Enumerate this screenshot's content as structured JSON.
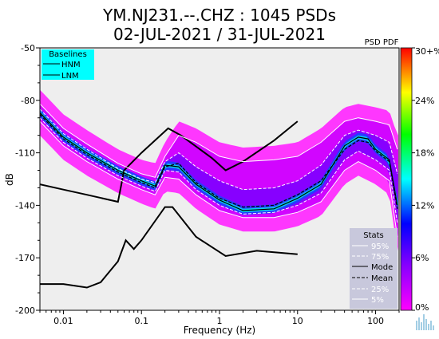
{
  "chart_data": {
    "type": "heatmap",
    "title_line1": "YM.NJ231.--.CHZ : 1045 PSDs",
    "title_line2": "02-JUL-2021 / 31-JUL-2021",
    "xlabel": "Frequency (Hz)",
    "ylabel": "dB",
    "x_scale": "log",
    "xlim": [
      0.005,
      200
    ],
    "ylim": [
      -200,
      -50
    ],
    "x_ticks": [
      0.01,
      0.1,
      1,
      10,
      100
    ],
    "x_tick_labels": [
      "0.01",
      "0.1",
      "1",
      "10",
      "100"
    ],
    "y_ticks": [
      -50,
      -80,
      -110,
      -140,
      -170,
      -200
    ],
    "y_tick_labels": [
      "-50",
      "-80",
      "-110",
      "-140",
      "-170",
      "-200"
    ],
    "colorbar": {
      "title": "PSD PDF",
      "ticks": [
        "0%",
        "6%",
        "12%",
        "18%",
        "24%",
        "30+%"
      ],
      "tick_values": [
        0,
        6,
        12,
        18,
        24,
        30
      ],
      "colors": [
        "#ff00ff",
        "#8800ff",
        "#0000ff",
        "#00ffff",
        "#00ff00",
        "#ffff00",
        "#ff0000"
      ]
    },
    "baselines_legend": {
      "title": "Baselines",
      "entries": [
        "HNM",
        "LNM"
      ],
      "background": "#00ffff"
    },
    "stats_legend": {
      "title": "Stats",
      "entries": [
        "95%",
        "75%",
        "Mode",
        "Mean",
        "25%",
        "5%"
      ],
      "background": "#c8c8dc"
    },
    "series": [
      {
        "name": "HNM",
        "x": [
          0.005,
          0.01,
          0.02,
          0.05,
          0.06,
          0.1,
          0.22,
          0.32,
          0.8,
          1.2,
          2,
          5,
          10
        ],
        "y": [
          -128,
          -131,
          -134,
          -138,
          -120,
          -110,
          -96,
          -100,
          -113,
          -120,
          -115,
          -103,
          -92
        ]
      },
      {
        "name": "LNM",
        "x": [
          0.005,
          0.01,
          0.02,
          0.03,
          0.05,
          0.063,
          0.08,
          0.1,
          0.2,
          0.25,
          0.5,
          1.2,
          3,
          10
        ],
        "y": [
          -185,
          -185,
          -187,
          -184,
          -172,
          -160,
          -165,
          -160,
          -141,
          -141,
          -158,
          -169,
          -166,
          -168
        ]
      },
      {
        "name": "Mode",
        "x": [
          0.005,
          0.01,
          0.02,
          0.05,
          0.1,
          0.15,
          0.2,
          0.3,
          0.5,
          1,
          2,
          5,
          10,
          20,
          40,
          60,
          80,
          100,
          150,
          190
        ],
        "y": [
          -87,
          -101,
          -110,
          -120,
          -126,
          -129,
          -117,
          -118,
          -128,
          -137,
          -143,
          -142,
          -136,
          -128,
          -106,
          -101,
          -102,
          -108,
          -114,
          -140
        ]
      },
      {
        "name": "Mean",
        "x": [
          0.005,
          0.01,
          0.02,
          0.05,
          0.1,
          0.15,
          0.2,
          0.3,
          0.5,
          1,
          2,
          5,
          10,
          20,
          40,
          60,
          80,
          100,
          150,
          190
        ],
        "y": [
          -88,
          -102,
          -111,
          -121,
          -127,
          -130,
          -118,
          -116,
          -127,
          -136,
          -141,
          -140,
          -134,
          -126,
          -108,
          -103,
          -104,
          -109,
          -115,
          -142
        ]
      },
      {
        "name": "95%",
        "x": [
          0.005,
          0.01,
          0.02,
          0.05,
          0.1,
          0.15,
          0.2,
          0.3,
          0.5,
          1,
          2,
          5,
          10,
          20,
          40,
          60,
          100,
          150,
          190
        ],
        "y": [
          -82,
          -96,
          -105,
          -116,
          -122,
          -124,
          -112,
          -100,
          -104,
          -112,
          -115,
          -114,
          -112,
          -104,
          -92,
          -90,
          -92,
          -94,
          -108
        ]
      },
      {
        "name": "75%",
        "x": [
          0.005,
          0.01,
          0.02,
          0.05,
          0.1,
          0.15,
          0.2,
          0.3,
          0.5,
          1,
          2,
          5,
          10,
          20,
          40,
          60,
          100,
          150,
          190
        ],
        "y": [
          -85,
          -99,
          -108,
          -119,
          -125,
          -127,
          -115,
          -110,
          -118,
          -126,
          -131,
          -130,
          -126,
          -117,
          -100,
          -97,
          -100,
          -104,
          -122
        ]
      },
      {
        "name": "25%",
        "x": [
          0.005,
          0.01,
          0.02,
          0.05,
          0.1,
          0.15,
          0.2,
          0.3,
          0.5,
          1,
          2,
          5,
          10,
          20,
          40,
          60,
          100,
          150,
          190
        ],
        "y": [
          -90,
          -104,
          -113,
          -123,
          -129,
          -132,
          -120,
          -121,
          -131,
          -140,
          -145,
          -144,
          -140,
          -133,
          -114,
          -109,
          -114,
          -120,
          -150
        ]
      },
      {
        "name": "5%",
        "x": [
          0.005,
          0.01,
          0.02,
          0.05,
          0.1,
          0.15,
          0.2,
          0.3,
          0.5,
          1,
          2,
          5,
          10,
          20,
          40,
          60,
          100,
          150,
          190
        ],
        "y": [
          -92,
          -106,
          -115,
          -125,
          -131,
          -134,
          -124,
          -125,
          -134,
          -143,
          -147,
          -147,
          -144,
          -138,
          -120,
          -115,
          -120,
          -126,
          -158
        ]
      }
    ]
  }
}
